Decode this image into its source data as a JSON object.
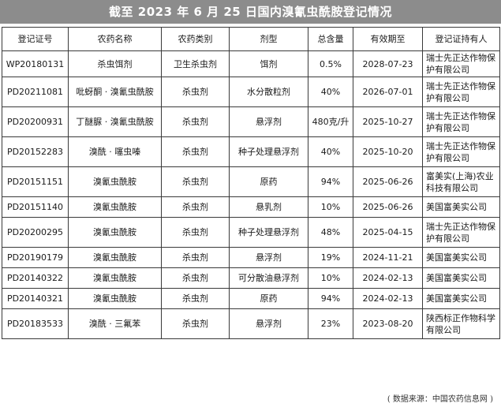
{
  "title": "截至 2023 年 6 月 25 日国内溴氰虫酰胺登记情况",
  "table": {
    "headers": [
      "登记证号",
      "农药名称",
      "农药类别",
      "剂型",
      "总含量",
      "有效期至",
      "登记证持有人"
    ],
    "rows": [
      [
        "WP20180131",
        "杀虫饵剂",
        "卫生杀虫剂",
        "饵剂",
        "0.5%",
        "2028-07-23",
        "瑞士先正达作物保护有限公司"
      ],
      [
        "PD20211081",
        "吡蚜酮 · 溴氰虫酰胺",
        "杀虫剂",
        "水分散粒剂",
        "40%",
        "2026-07-01",
        "瑞士先正达作物保护有限公司"
      ],
      [
        "PD20200931",
        "丁醚脲 · 溴氰虫酰胺",
        "杀虫剂",
        "悬浮剂",
        "480克/升",
        "2025-10-27",
        "瑞士先正达作物保护有限公司"
      ],
      [
        "PD20152283",
        "溴酰 · 噻虫嗪",
        "杀虫剂",
        "种子处理悬浮剂",
        "40%",
        "2025-10-20",
        "瑞士先正达作物保护有限公司"
      ],
      [
        "PD20151151",
        "溴氰虫酰胺",
        "杀虫剂",
        "原药",
        "94%",
        "2025-06-26",
        "富美实(上海)农业科技有限公司"
      ],
      [
        "PD20151140",
        "溴氰虫酰胺",
        "杀虫剂",
        "悬乳剂",
        "10%",
        "2025-06-26",
        "美国富美实公司"
      ],
      [
        "PD20200295",
        "溴氰虫酰胺",
        "杀虫剂",
        "种子处理悬浮剂",
        "48%",
        "2025-04-15",
        "瑞士先正达作物保护有限公司"
      ],
      [
        "PD20190179",
        "溴氰虫酰胺",
        "杀虫剂",
        "悬浮剂",
        "19%",
        "2024-11-21",
        "美国富美实公司"
      ],
      [
        "PD20140322",
        "溴氰虫酰胺",
        "杀虫剂",
        "可分散油悬浮剂",
        "10%",
        "2024-02-13",
        "美国富美实公司"
      ],
      [
        "PD20140321",
        "溴氰虫酰胺",
        "杀虫剂",
        "原药",
        "94%",
        "2024-02-13",
        "美国富美实公司"
      ],
      [
        "PD20183533",
        "溴酰 · 三氟苯",
        "杀虫剂",
        "悬浮剂",
        "23%",
        "2023-08-20",
        "陕西标正作物科学有限公司"
      ]
    ]
  },
  "source_note": "( 数据来源：中国农药信息网 )"
}
